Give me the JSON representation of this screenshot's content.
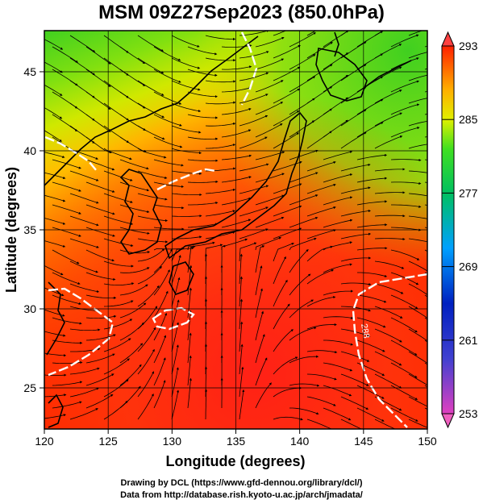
{
  "title": "MSM 09Z27Sep2023 (850.0hPa)",
  "footer": {
    "line1": "Drawing by DCL (https://www.gfd-dennou.org/library/dcl/)",
    "line2": "Data from http://database.rish.kyoto-u.ac.jp/arch/jmadata/"
  },
  "chart_data": {
    "type": "heatmap",
    "title": "MSM 09Z27Sep2023 (850.0hPa)",
    "xlabel": "Longitude (degrees)",
    "ylabel": "Latitude  (degrees)",
    "xlim": [
      120,
      150
    ],
    "ylim": [
      22.4,
      47.6
    ],
    "x_ticks": [
      120,
      125,
      130,
      135,
      140,
      145,
      150
    ],
    "y_ticks": [
      25,
      30,
      35,
      40,
      45
    ],
    "grid": true,
    "colorbar": {
      "position": "right",
      "min": 253,
      "max": 293,
      "ticks": [
        253,
        261,
        269,
        277,
        285,
        293
      ],
      "colors": [
        "#e040c0",
        "#0020c0",
        "#00a0ff",
        "#00c060",
        "#20e020",
        "#ffff00",
        "#ff8000",
        "#ff0000"
      ]
    },
    "contour_value": 288,
    "contour_label": "288",
    "field": "temperature",
    "overlay": "streamlines"
  }
}
